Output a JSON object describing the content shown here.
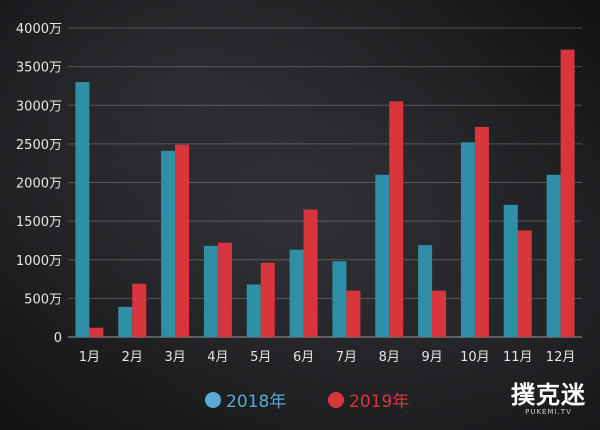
{
  "chart_data": {
    "type": "bar",
    "title": "",
    "xlabel": "",
    "ylabel": "",
    "categories": [
      "1月",
      "2月",
      "3月",
      "4月",
      "5月",
      "6月",
      "7月",
      "8月",
      "9月",
      "10月",
      "11月",
      "12月"
    ],
    "series": [
      {
        "name": "2018年",
        "color": "#2e8fa6",
        "values": [
          3300,
          390,
          2410,
          1180,
          680,
          1130,
          980,
          2100,
          1190,
          2520,
          1710,
          2100
        ]
      },
      {
        "name": "2019年",
        "color": "#d8363c",
        "values": [
          120,
          690,
          2490,
          1220,
          960,
          1650,
          600,
          3050,
          600,
          2720,
          1380,
          3720
        ]
      }
    ],
    "yticks": [
      "0",
      "500万",
      "1000万",
      "1500万",
      "2000万",
      "2500万",
      "3000万",
      "3500万",
      "4000万"
    ],
    "ylim": [
      0,
      4000
    ],
    "legend_position": "bottom-center",
    "grid": true
  },
  "watermark": {
    "main": "撲克迷",
    "sub": "PUKEMI.TV"
  }
}
